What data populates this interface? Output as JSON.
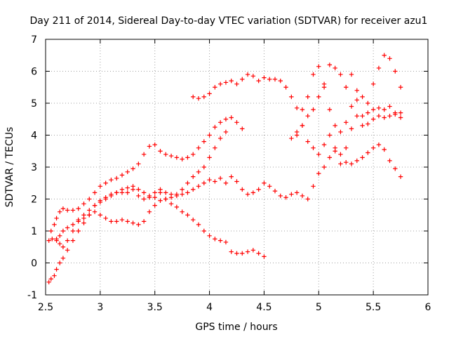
{
  "chart_data": {
    "type": "scatter",
    "title": "Day 211 of 2014, Sidereal Day-to-day VTEC variation (SDTVAR) for receiver azu1",
    "xlabel": "GPS time / hours",
    "ylabel": "SDTVAR / TECUs",
    "xlim": [
      2.5,
      6
    ],
    "ylim": [
      -1,
      7
    ],
    "xticks": [
      "2.5",
      "3",
      "3.5",
      "4",
      "4.5",
      "5",
      "5.5",
      "6"
    ],
    "yticks": [
      "-1",
      "0",
      "1",
      "2",
      "3",
      "4",
      "5",
      "6",
      "7"
    ],
    "grid": true,
    "marker": "+",
    "color": "#ff0000",
    "series": [
      {
        "x": [
          2.53,
          2.55,
          2.58,
          2.6,
          2.63,
          2.66,
          2.7,
          2.75,
          2.8,
          2.85,
          2.9,
          2.95,
          3.0,
          3.05,
          3.1,
          3.15,
          3.2,
          3.25,
          3.3,
          3.35,
          3.4,
          3.45,
          3.5,
          3.55,
          3.6,
          3.65,
          3.7,
          3.75,
          3.8,
          3.85,
          3.9,
          3.95,
          4.0,
          4.05,
          4.1,
          4.15,
          4.2,
          4.25,
          4.3,
          4.35,
          4.4,
          4.45,
          4.5,
          4.55,
          4.6,
          4.65,
          4.7,
          4.75,
          4.8,
          4.85,
          4.9,
          4.95,
          5.0,
          5.05,
          5.1,
          5.15,
          5.2,
          5.25,
          5.3,
          5.35,
          5.4,
          5.45,
          5.5,
          5.55,
          5.6,
          5.65,
          5.7,
          5.75
        ],
        "y": [
          -0.6,
          -0.5,
          -0.4,
          -0.2,
          0.0,
          0.15,
          0.4,
          0.7,
          1.0,
          1.25,
          1.5,
          1.8,
          1.95,
          2.05,
          2.15,
          2.2,
          2.2,
          2.2,
          2.3,
          2.1,
          2.0,
          2.05,
          2.2,
          2.3,
          2.2,
          2.15,
          2.1,
          2.15,
          2.2,
          2.3,
          2.4,
          2.5,
          2.6,
          2.55,
          2.65,
          2.5,
          2.7,
          2.55,
          2.3,
          2.15,
          2.2,
          2.3,
          2.5,
          2.4,
          2.25,
          2.1,
          2.05,
          2.15,
          2.2,
          2.1,
          2.0,
          2.4,
          2.8,
          3.0,
          3.3,
          3.5,
          3.4,
          3.15,
          3.1,
          3.2,
          3.3,
          3.45,
          3.6,
          3.7,
          3.55,
          3.2,
          2.95,
          2.7
        ]
      },
      {
        "x": [
          2.53,
          2.56,
          2.6,
          2.63,
          2.66,
          2.7,
          2.75,
          2.8,
          2.85,
          2.9,
          2.95,
          3.0,
          3.05,
          3.1,
          3.15,
          3.2,
          3.25,
          3.3,
          3.35,
          3.4,
          3.45,
          3.5,
          3.55,
          3.6,
          3.65,
          3.7,
          3.75,
          3.8,
          3.85,
          3.9,
          3.95,
          4.0,
          4.05,
          4.1,
          4.15
        ],
        "y": [
          0.7,
          0.75,
          0.7,
          0.6,
          0.5,
          0.7,
          1.0,
          1.3,
          1.4,
          1.5,
          1.6,
          1.5,
          1.4,
          1.3,
          1.3,
          1.35,
          1.3,
          1.25,
          1.2,
          1.3,
          1.6,
          1.8,
          1.95,
          2.0,
          2.05,
          2.15,
          2.3,
          2.5,
          2.7,
          2.85,
          3.0,
          3.3,
          3.6,
          3.9,
          4.1
        ]
      },
      {
        "x": [
          2.55,
          2.58,
          2.6,
          2.63,
          2.66,
          2.7,
          2.75,
          2.8,
          2.85,
          2.9,
          2.95,
          3.0,
          3.05,
          3.1,
          3.15,
          3.2,
          3.25,
          3.3,
          3.35,
          3.4,
          3.45,
          3.5,
          3.55,
          3.6,
          3.65,
          3.7,
          3.75,
          3.8,
          3.85,
          3.9,
          3.95,
          4.0,
          4.05,
          4.1,
          4.15,
          4.2,
          4.25,
          4.3
        ],
        "y": [
          1.0,
          1.2,
          1.4,
          1.6,
          1.7,
          1.65,
          1.65,
          1.7,
          1.85,
          2.0,
          2.2,
          2.4,
          2.5,
          2.6,
          2.65,
          2.75,
          2.85,
          2.95,
          3.1,
          3.4,
          3.65,
          3.7,
          3.5,
          3.4,
          3.35,
          3.3,
          3.25,
          3.3,
          3.4,
          3.6,
          3.8,
          4.0,
          4.25,
          4.4,
          4.5,
          4.55,
          4.4,
          4.2
        ]
      },
      {
        "x": [
          2.6,
          2.63,
          2.66,
          2.7,
          2.75,
          2.8,
          2.85,
          2.9,
          2.95,
          3.0,
          3.05,
          3.1,
          3.15,
          3.2,
          3.25,
          3.3,
          3.35,
          3.4,
          3.45,
          3.5,
          3.55,
          3.6,
          3.65,
          3.7,
          3.75,
          3.8,
          3.85,
          3.9,
          3.95,
          4.0,
          4.05,
          4.1,
          4.15,
          4.2,
          4.25,
          4.3,
          4.35,
          4.4,
          4.45,
          4.5
        ],
        "y": [
          0.75,
          0.85,
          1.0,
          1.1,
          1.2,
          1.35,
          1.5,
          1.65,
          1.8,
          1.9,
          2.0,
          2.1,
          2.2,
          2.3,
          2.35,
          2.4,
          2.3,
          2.2,
          2.1,
          2.05,
          2.2,
          2.0,
          1.85,
          1.75,
          1.6,
          1.5,
          1.35,
          1.2,
          1.0,
          0.85,
          0.75,
          0.7,
          0.65,
          0.35,
          0.3,
          0.3,
          0.35,
          0.4,
          0.3,
          0.2
        ]
      },
      {
        "x": [
          3.85,
          3.9,
          3.95,
          4.0,
          4.05,
          4.1,
          4.15,
          4.2,
          4.25,
          4.3,
          4.35,
          4.4,
          4.45,
          4.5,
          4.55,
          4.6,
          4.65,
          4.7,
          4.75,
          4.8,
          4.85,
          4.9,
          4.95,
          5.0,
          5.05,
          5.1,
          5.15,
          5.2,
          5.25,
          5.3,
          5.35,
          5.4,
          5.45,
          5.5,
          5.55,
          5.6,
          5.65,
          5.7,
          5.75
        ],
        "y": [
          5.2,
          5.15,
          5.2,
          5.3,
          5.5,
          5.6,
          5.65,
          5.7,
          5.6,
          5.75,
          5.9,
          5.85,
          5.7,
          5.8,
          5.75,
          5.75,
          5.7,
          5.5,
          5.2,
          4.85,
          4.8,
          5.2,
          5.9,
          6.15,
          5.6,
          4.8,
          4.3,
          4.1,
          4.4,
          4.9,
          5.1,
          4.6,
          4.35,
          4.5,
          4.6,
          4.55,
          4.6,
          4.65,
          4.7
        ]
      },
      {
        "x": [
          4.8,
          4.85,
          4.9,
          4.95,
          5.0,
          5.05,
          5.1,
          5.15,
          5.2,
          5.25,
          5.3,
          5.35,
          5.4,
          5.45,
          5.5,
          5.55,
          5.6,
          5.65,
          5.7,
          5.75
        ],
        "y": [
          4.1,
          4.3,
          4.6,
          4.8,
          5.2,
          5.5,
          6.2,
          6.1,
          5.9,
          5.5,
          5.9,
          5.4,
          5.2,
          5.0,
          5.6,
          6.1,
          6.5,
          6.4,
          6.0,
          5.5
        ]
      },
      {
        "x": [
          4.75,
          4.8,
          4.85,
          4.9,
          4.95,
          5.0,
          5.05,
          5.1,
          5.15,
          5.2,
          5.25,
          5.3,
          5.35,
          5.4,
          5.45,
          5.5,
          5.55,
          5.6,
          5.65,
          5.7,
          5.75
        ],
        "y": [
          3.9,
          4.0,
          4.3,
          3.8,
          3.6,
          3.4,
          3.7,
          4.0,
          3.6,
          3.1,
          3.6,
          4.2,
          4.6,
          4.3,
          4.7,
          4.8,
          4.85,
          4.8,
          4.9,
          4.7,
          4.55
        ]
      }
    ]
  }
}
